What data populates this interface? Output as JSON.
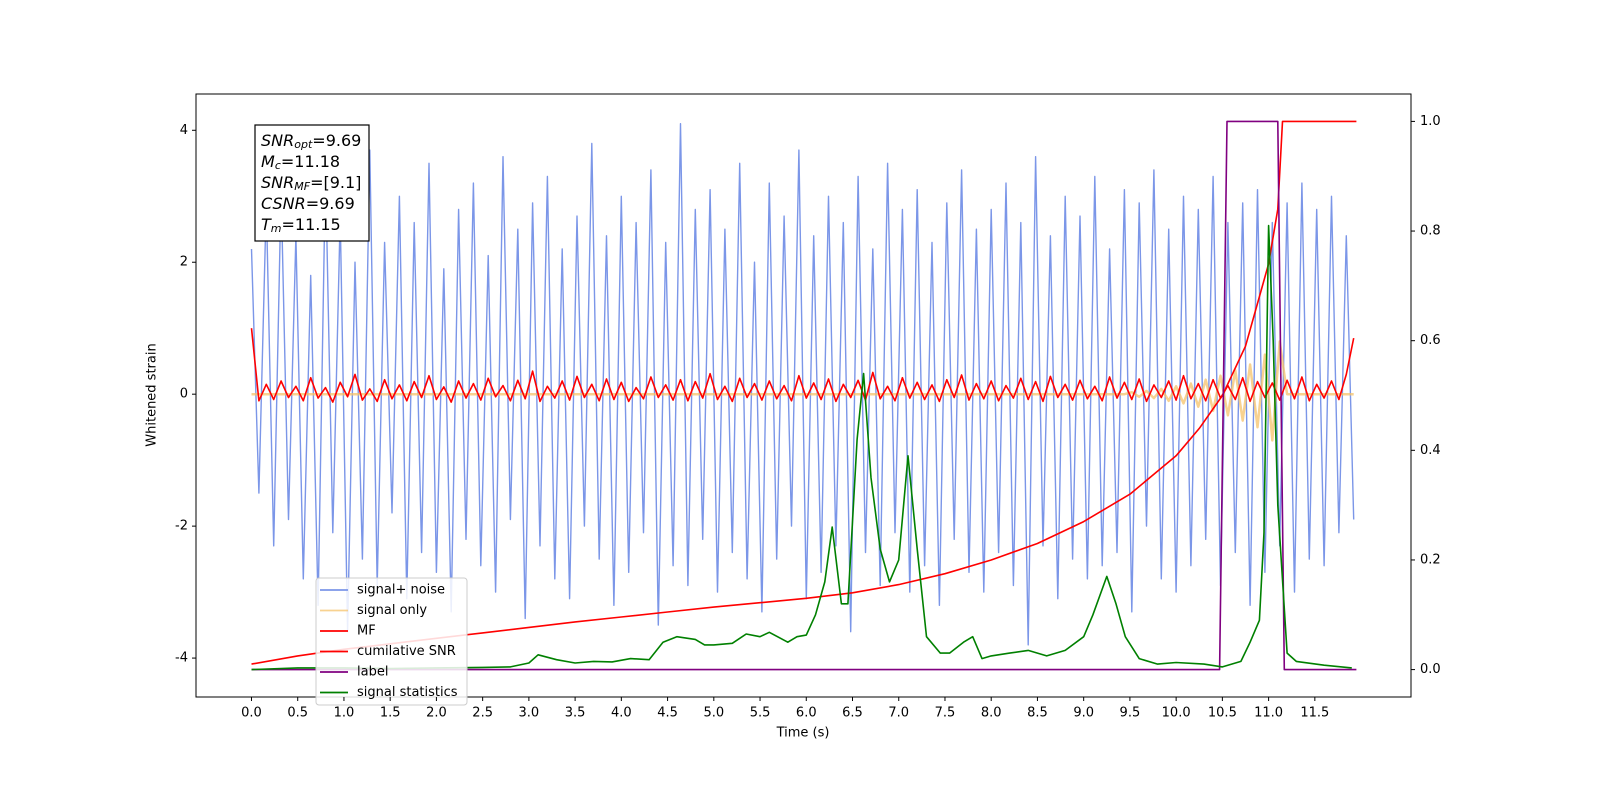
{
  "chart_data": {
    "type": "line",
    "xlabel": "Time (s)",
    "ylabel": "Whitened strain",
    "xlim": [
      -0.6,
      12.54
    ],
    "ylim": [
      -4.59,
      4.55
    ],
    "y2lim": [
      -0.05,
      1.05
    ],
    "grid": false,
    "legend": "lower left",
    "xticks": [
      {
        "value": 0,
        "label": "0.0"
      },
      0.5,
      {
        "value": 1,
        "label": "1.0"
      },
      1.5,
      {
        "value": 2,
        "label": "2.0"
      },
      2.5,
      {
        "value": 3,
        "label": "3.0"
      },
      3.5,
      {
        "value": 4,
        "label": "4.0"
      },
      4.5,
      {
        "value": 5,
        "label": "5.0"
      },
      5.5,
      {
        "value": 6,
        "label": "6.0"
      },
      6.5,
      {
        "value": 7,
        "label": "7.0"
      },
      7.5,
      {
        "value": 8,
        "label": "8.0"
      },
      8.5,
      {
        "value": 9,
        "label": "9.0"
      },
      9.5,
      {
        "value": 10,
        "label": "10.0"
      },
      10.5,
      {
        "value": 11,
        "label": "11.0"
      },
      11.5
    ],
    "yticks": [
      -4,
      -2,
      0,
      2,
      4
    ],
    "y2ticks": [
      {
        "value": 0,
        "label": "0.0"
      },
      0.2,
      0.4,
      0.6,
      0.8,
      {
        "value": 1,
        "label": "1.0"
      }
    ],
    "annotations": [
      {
        "name": "SNR",
        "sub": "opt",
        "text": "=9.69"
      },
      {
        "name": "M",
        "sub": "c",
        "text": "=11.18"
      },
      {
        "name": "SNR",
        "sub": "MF",
        "text": "=[9.1]"
      },
      {
        "name": "CSNR",
        "text": "=9.69"
      },
      {
        "name": "T",
        "sub": "m",
        "text": "=11.15"
      }
    ],
    "x": [
      0,
      0.08,
      0.16,
      0.24,
      0.32,
      0.4,
      0.48,
      0.56,
      0.64,
      0.72,
      0.8,
      0.88,
      0.96,
      1.04,
      1.12,
      1.2,
      1.28,
      1.36,
      1.44,
      1.52,
      1.6,
      1.68,
      1.76,
      1.84,
      1.92,
      2,
      2.08,
      2.16,
      2.24,
      2.32,
      2.4,
      2.48,
      2.56,
      2.64,
      2.72,
      2.8,
      2.88,
      2.96,
      3.04,
      3.12,
      3.2,
      3.28,
      3.36,
      3.44,
      3.52,
      3.6,
      3.68,
      3.76,
      3.84,
      3.92,
      4,
      4.08,
      4.16,
      4.24,
      4.32,
      4.4,
      4.48,
      4.56,
      4.64,
      4.72,
      4.8,
      4.88,
      4.96,
      5.04,
      5.12,
      5.2,
      5.28,
      5.36,
      5.44,
      5.52,
      5.6,
      5.68,
      5.76,
      5.84,
      5.92,
      6,
      6.08,
      6.16,
      6.24,
      6.32,
      6.4,
      6.48,
      6.56,
      6.64,
      6.72,
      6.8,
      6.88,
      6.96,
      7.04,
      7.12,
      7.2,
      7.28,
      7.36,
      7.44,
      7.52,
      7.6,
      7.68,
      7.76,
      7.84,
      7.92,
      8,
      8.08,
      8.16,
      8.24,
      8.32,
      8.4,
      8.48,
      8.56,
      8.64,
      8.72,
      8.8,
      8.88,
      8.96,
      9.04,
      9.12,
      9.2,
      9.28,
      9.36,
      9.44,
      9.52,
      9.6,
      9.68,
      9.76,
      9.84,
      9.92,
      10,
      10.08,
      10.16,
      10.24,
      10.32,
      10.4,
      10.48,
      10.56,
      10.64,
      10.72,
      10.8,
      10.88,
      10.96,
      11.04,
      11.12,
      11.2,
      11.28,
      11.36,
      11.44,
      11.52,
      11.6,
      11.68,
      11.76,
      11.84,
      11.92
    ],
    "series": [
      {
        "name": "signal+ noise",
        "color": "#7b96e8",
        "values": [
          2.2,
          -1.5,
          2.9,
          -2.3,
          3.1,
          -1.9,
          2.4,
          -2.8,
          1.8,
          -3.2,
          3.4,
          -2.1,
          2.7,
          -3.6,
          2.0,
          -2.5,
          3.7,
          -2.9,
          2.3,
          -1.8,
          3.0,
          -3.1,
          2.6,
          -2.4,
          3.5,
          -2.7,
          1.9,
          -3.3,
          2.8,
          -2.2,
          3.2,
          -2.6,
          2.1,
          -3.0,
          3.6,
          -1.9,
          2.5,
          -3.4,
          2.9,
          -2.3,
          3.3,
          -2.8,
          2.2,
          -3.1,
          2.7,
          -2.0,
          3.8,
          -2.5,
          2.4,
          -3.2,
          3.0,
          -2.7,
          2.6,
          -2.1,
          3.4,
          -3.5,
          2.3,
          -2.6,
          4.1,
          -2.9,
          2.8,
          -2.2,
          3.1,
          -3.0,
          2.5,
          -2.4,
          3.5,
          -2.8,
          2.0,
          -3.3,
          3.2,
          -2.5,
          2.7,
          -2.0,
          3.7,
          -3.1,
          2.4,
          -2.7,
          3.0,
          -2.3,
          2.6,
          -3.6,
          3.3,
          -2.4,
          2.2,
          -2.9,
          3.5,
          -2.1,
          2.8,
          -3.0,
          3.1,
          -2.6,
          2.3,
          -3.2,
          2.9,
          -2.2,
          3.4,
          -2.7,
          2.5,
          -3.0,
          2.8,
          -2.4,
          3.2,
          -2.9,
          2.6,
          -3.8,
          3.6,
          -2.3,
          2.4,
          -3.1,
          3.0,
          -2.5,
          2.7,
          -2.8,
          3.3,
          -2.6,
          2.2,
          -2.4,
          3.1,
          -3.3,
          2.9,
          -2.0,
          3.4,
          -2.8,
          2.5,
          -3.0,
          3.0,
          -2.6,
          2.8,
          -2.2,
          3.3,
          -2.9,
          2.6,
          -2.4,
          2.9,
          -3.2,
          3.1,
          -2.7,
          2.6,
          -2.3,
          2.9,
          -3.0,
          3.2,
          -2.5,
          2.8,
          -2.6,
          3.0,
          -2.1,
          2.4,
          -1.9
        ]
      },
      {
        "name": "signal only",
        "color": "#f5c36b",
        "x": [
          0,
          9.44,
          9.52,
          9.6,
          9.68,
          9.76,
          9.84,
          9.92,
          10.0,
          10.08,
          10.16,
          10.24,
          10.32,
          10.4,
          10.48,
          10.56,
          10.64,
          10.72,
          10.8,
          10.88,
          10.96,
          11.04,
          11.12,
          11.2,
          11.92
        ],
        "values": [
          0,
          0,
          0.03,
          -0.04,
          0.05,
          -0.06,
          0.08,
          -0.1,
          0.12,
          -0.14,
          0.16,
          -0.19,
          0.22,
          -0.25,
          0.28,
          -0.32,
          0.36,
          -0.4,
          0.45,
          -0.5,
          0.6,
          -0.7,
          0.8,
          0,
          0
        ]
      },
      {
        "name": "MF",
        "color": "#ff0000",
        "values": [
          1.0,
          -0.1,
          0.15,
          -0.08,
          0.2,
          -0.05,
          0.12,
          -0.1,
          0.25,
          -0.06,
          0.1,
          -0.12,
          0.18,
          -0.04,
          0.3,
          -0.09,
          0.08,
          -0.11,
          0.22,
          -0.07,
          0.14,
          -0.1,
          0.19,
          -0.05,
          0.28,
          -0.08,
          0.11,
          -0.12,
          0.2,
          -0.06,
          0.16,
          -0.09,
          0.24,
          -0.04,
          0.13,
          -0.1,
          0.21,
          -0.07,
          0.35,
          -0.11,
          0.12,
          -0.06,
          0.2,
          -0.09,
          0.27,
          -0.05,
          0.15,
          -0.1,
          0.23,
          -0.08,
          0.18,
          -0.11,
          0.1,
          -0.07,
          0.26,
          -0.05,
          0.14,
          -0.09,
          0.22,
          -0.1,
          0.19,
          -0.06,
          0.31,
          -0.08,
          0.12,
          -0.11,
          0.24,
          -0.05,
          0.16,
          -0.09,
          0.2,
          -0.07,
          0.13,
          -0.1,
          0.28,
          -0.06,
          0.17,
          -0.08,
          0.23,
          -0.11,
          0.15,
          -0.05,
          0.21,
          -0.09,
          0.33,
          -0.07,
          0.12,
          -0.1,
          0.25,
          -0.06,
          0.18,
          -0.08,
          0.14,
          -0.11,
          0.22,
          -0.05,
          0.29,
          -0.09,
          0.16,
          -0.07,
          0.2,
          -0.1,
          0.13,
          -0.06,
          0.24,
          -0.08,
          0.19,
          -0.11,
          0.27,
          -0.05,
          0.15,
          -0.09,
          0.21,
          -0.07,
          0.12,
          -0.1,
          0.26,
          -0.06,
          0.18,
          -0.08,
          0.23,
          -0.11,
          0.14,
          -0.05,
          0.2,
          -0.09,
          0.28,
          -0.07,
          0.16,
          -0.1,
          0.22,
          -0.06,
          0.13,
          -0.08,
          0.25,
          -0.11,
          0.19,
          -0.05,
          0.17,
          -0.09,
          0.21,
          -0.07,
          0.26,
          -0.1,
          0.15,
          -0.06,
          0.2,
          -0.08,
          0.3,
          0.85
        ]
      },
      {
        "name": "cumilative SNR",
        "color": "#ff0000",
        "axis": "y2",
        "x": [
          0,
          0.5,
          1,
          1.5,
          2,
          2.5,
          3,
          3.5,
          4,
          4.5,
          5,
          5.5,
          6,
          6.5,
          7,
          7.5,
          8,
          8.5,
          9,
          9.5,
          10,
          10.25,
          10.5,
          10.75,
          11,
          11.1,
          11.15,
          11.95
        ],
        "values": [
          0.01,
          0.025,
          0.037,
          0.047,
          0.057,
          0.067,
          0.077,
          0.087,
          0.096,
          0.105,
          0.114,
          0.122,
          0.13,
          0.14,
          0.155,
          0.175,
          0.2,
          0.23,
          0.27,
          0.32,
          0.39,
          0.44,
          0.5,
          0.59,
          0.74,
          0.84,
          1.0,
          1.0
        ]
      },
      {
        "name": "label",
        "color": "#800080",
        "axis": "y2",
        "x": [
          0,
          10.47,
          10.55,
          11.1,
          11.17,
          11.95
        ],
        "values": [
          0,
          0,
          1,
          1,
          0,
          0
        ]
      },
      {
        "name": "signal statistics",
        "color": "#008000",
        "axis": "y2",
        "x": [
          0,
          0.5,
          1,
          1.5,
          2,
          2.5,
          2.8,
          3.0,
          3.1,
          3.3,
          3.5,
          3.7,
          3.9,
          4.1,
          4.3,
          4.45,
          4.6,
          4.8,
          4.9,
          5.0,
          5.2,
          5.35,
          5.5,
          5.6,
          5.8,
          5.9,
          6.0,
          6.1,
          6.2,
          6.28,
          6.38,
          6.45,
          6.55,
          6.62,
          6.7,
          6.8,
          6.9,
          7.0,
          7.1,
          7.2,
          7.3,
          7.45,
          7.55,
          7.7,
          7.8,
          7.9,
          8.0,
          8.2,
          8.4,
          8.6,
          8.8,
          9.0,
          9.1,
          9.25,
          9.35,
          9.45,
          9.6,
          9.8,
          10.0,
          10.3,
          10.5,
          10.7,
          10.8,
          10.9,
          10.95,
          11.0,
          11.05,
          11.1,
          11.2,
          11.3,
          11.6,
          11.9
        ],
        "values": [
          0.0,
          0.003,
          0.003,
          0.002,
          0.003,
          0.004,
          0.005,
          0.012,
          0.027,
          0.018,
          0.012,
          0.015,
          0.014,
          0.02,
          0.018,
          0.05,
          0.06,
          0.055,
          0.045,
          0.045,
          0.048,
          0.065,
          0.06,
          0.068,
          0.05,
          0.06,
          0.063,
          0.1,
          0.16,
          0.26,
          0.12,
          0.12,
          0.42,
          0.54,
          0.35,
          0.22,
          0.16,
          0.2,
          0.39,
          0.22,
          0.06,
          0.03,
          0.03,
          0.05,
          0.06,
          0.02,
          0.025,
          0.03,
          0.035,
          0.025,
          0.035,
          0.06,
          0.1,
          0.17,
          0.12,
          0.06,
          0.02,
          0.01,
          0.013,
          0.01,
          0.005,
          0.015,
          0.05,
          0.09,
          0.25,
          0.81,
          0.6,
          0.3,
          0.03,
          0.015,
          0.008,
          0.003
        ]
      }
    ]
  }
}
